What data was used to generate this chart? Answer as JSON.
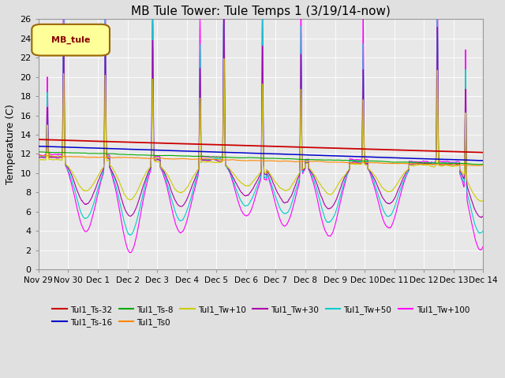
{
  "title": "MB Tule Tower: Tule Temps 1 (3/19/14-now)",
  "ylabel": "Temperature (C)",
  "ylim": [
    0,
    26
  ],
  "yticks": [
    0,
    2,
    4,
    6,
    8,
    10,
    12,
    14,
    16,
    18,
    20,
    22,
    24,
    26
  ],
  "series_colors": {
    "Tul1_Ts-32": "#cc0000",
    "Tul1_Ts-16": "#0000cc",
    "Tul1_Ts-8": "#00aa00",
    "Tul1_Ts0": "#ff8800",
    "Tul1_Tw+10": "#cccc00",
    "Tul1_Tw+30": "#aa00aa",
    "Tul1_Tw+50": "#00cccc",
    "Tul1_Tw+100": "#ff00ff"
  },
  "legend_box_color": "#ffff99",
  "legend_box_border": "#996600",
  "legend_text": "MB_tule",
  "legend_text_color": "#880000",
  "xtick_labels": [
    "Nov 29",
    "Nov 30",
    "Dec 1",
    "Dec 2",
    "Dec 3",
    "Dec 4",
    "Dec 5",
    "Dec 6",
    "Dec 7",
    "Dec 8",
    "Dec 9",
    "Dec 10",
    "Dec 11",
    "Dec 12",
    "Dec 13",
    "Dec 14"
  ],
  "grid_color": "#ffffff",
  "bg_color": "#e0e0e0",
  "plot_bg_color": "#e8e8e8",
  "title_fontsize": 11,
  "axis_fontsize": 9,
  "tick_fontsize": 8
}
